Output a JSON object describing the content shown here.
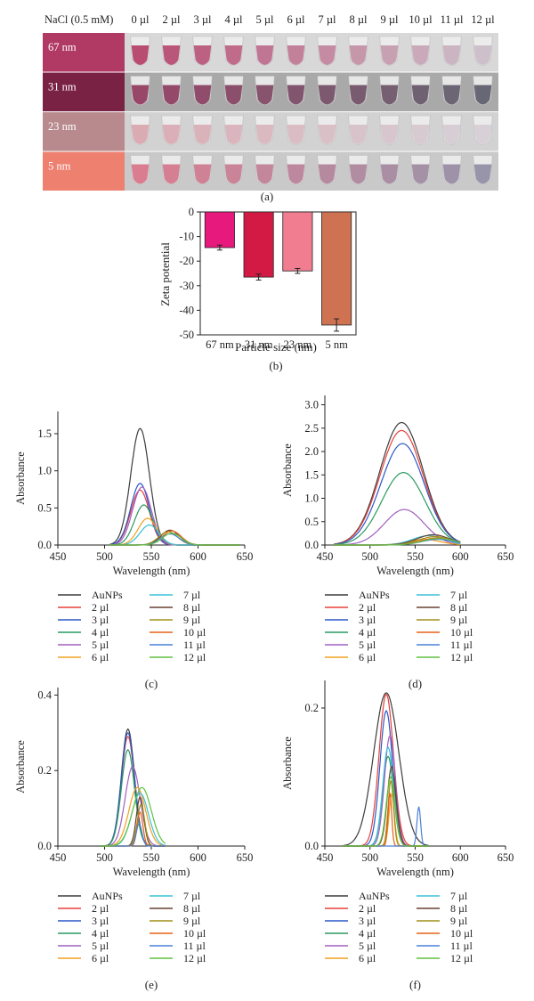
{
  "panel_a": {
    "header_label": "NaCl (0.5 mM)",
    "columns": [
      "0 µl",
      "2 µl",
      "3 µl",
      "4 µl",
      "5 µl",
      "6 µl",
      "7 µl",
      "8 µl",
      "9 µl",
      "10 µl",
      "11 µl",
      "12 µl"
    ],
    "rows": [
      {
        "label": "67 nm",
        "swatch": "#b03a63",
        "bg": "#d8d8d8",
        "tube": "#b0305c",
        "fade": "#c8b8c4"
      },
      {
        "label": "31 nm",
        "swatch": "#7a2244",
        "bg": "#a9a9a9",
        "tube": "#8a2a52",
        "fade": "#505060"
      },
      {
        "label": "23 nm",
        "swatch": "#b88a8e",
        "bg": "#d2d2d2",
        "tube": "#d8a0aa",
        "fade": "#d4ccd4"
      },
      {
        "label": "5 nm",
        "swatch": "#ee8070",
        "bg": "#c9c9c9",
        "tube": "#d86a80",
        "fade": "#8a86a0"
      }
    ],
    "caption": "(a)"
  },
  "panel_b": {
    "caption": "(b)",
    "chart_data": {
      "type": "bar",
      "categories": [
        "67 nm",
        "31 nm",
        "23 nm",
        "5 nm"
      ],
      "values": [
        -14.5,
        -26.5,
        -24,
        -46
      ],
      "errors": [
        1,
        1.2,
        1,
        2.5
      ],
      "colors": [
        "#e8197c",
        "#d21a44",
        "#f07d90",
        "#cf7252"
      ],
      "xlabel": "Particle size (nm)",
      "ylabel": "Zeta potential",
      "ylim": [
        -50,
        0
      ],
      "yticks": [
        0,
        -10,
        -20,
        -30,
        -40,
        -50
      ]
    }
  },
  "spectra": {
    "xlabel": "Wavelength (nm)",
    "ylabel": "Absorbance",
    "xticks": [
      450,
      500,
      550,
      600,
      650
    ],
    "legend": [
      {
        "name": "AuNPs",
        "color": "#3c3c3c"
      },
      {
        "name": "2 µl",
        "color": "#e8403a"
      },
      {
        "name": "3 µl",
        "color": "#2a58c8"
      },
      {
        "name": "4 µl",
        "color": "#2a9a60"
      },
      {
        "name": "5 µl",
        "color": "#a060c0"
      },
      {
        "name": "6 µl",
        "color": "#f0a020"
      },
      {
        "name": "7 µl",
        "color": "#38c0d8"
      },
      {
        "name": "8 µl",
        "color": "#6a4030"
      },
      {
        "name": "9 µl",
        "color": "#a09018"
      },
      {
        "name": "10 µl",
        "color": "#e86018"
      },
      {
        "name": "11 µl",
        "color": "#4a80d8"
      },
      {
        "name": "12 µl",
        "color": "#60c040"
      }
    ],
    "panels": [
      {
        "caption": "(c)",
        "ylim": [
          0,
          1.8
        ],
        "yticks": [
          0.0,
          0.5,
          1.0,
          1.5
        ],
        "ytick_labels": [
          "0.0",
          "0.5",
          "1.0",
          "1.5"
        ],
        "xrange": [
          505,
          645
        ],
        "peaks": [
          {
            "c": 538,
            "w": 10,
            "a": 1.57
          },
          {
            "c": 538,
            "w": 10,
            "a": 0.74
          },
          {
            "c": 538,
            "w": 10,
            "a": 0.83
          },
          {
            "c": 542,
            "w": 10,
            "a": 0.54
          },
          {
            "c": 540,
            "w": 10,
            "a": 0.78
          },
          {
            "c": 546,
            "w": 10,
            "a": 0.36
          },
          {
            "c": 548,
            "w": 10,
            "a": 0.27
          },
          {
            "c": 570,
            "w": 10,
            "a": 0.2
          },
          {
            "c": 568,
            "w": 10,
            "a": 0.18
          },
          {
            "c": 572,
            "w": 10,
            "a": 0.19
          },
          {
            "c": 570,
            "w": 10,
            "a": 0.15
          },
          {
            "c": 572,
            "w": 10,
            "a": 0.16
          }
        ]
      },
      {
        "caption": "(d)",
        "ylim": [
          0,
          3.2
        ],
        "yticks": [
          0.0,
          0.5,
          1.0,
          1.5,
          2.0,
          2.5,
          3.0
        ],
        "ytick_labels": [
          "0.0",
          "0.5",
          "1.0",
          "1.5",
          "2.0",
          "2.5",
          "3.0"
        ],
        "xrange": [
          460,
          600
        ],
        "peaks": [
          {
            "c": 535,
            "w": 24,
            "a": 2.62
          },
          {
            "c": 535,
            "w": 24,
            "a": 2.45
          },
          {
            "c": 536,
            "w": 24,
            "a": 2.17
          },
          {
            "c": 537,
            "w": 24,
            "a": 1.55
          },
          {
            "c": 538,
            "w": 22,
            "a": 0.76
          },
          {
            "c": 560,
            "w": 18,
            "a": 0.12
          },
          {
            "c": 565,
            "w": 18,
            "a": 0.2
          },
          {
            "c": 570,
            "w": 18,
            "a": 0.22
          },
          {
            "c": 572,
            "w": 18,
            "a": 0.18
          },
          {
            "c": 574,
            "w": 18,
            "a": 0.15
          },
          {
            "c": 575,
            "w": 18,
            "a": 0.12
          },
          {
            "c": 576,
            "w": 18,
            "a": 0.14
          }
        ]
      },
      {
        "caption": "(e)",
        "ylim": [
          0,
          0.42
        ],
        "yticks": [
          0.0,
          0.2,
          0.4
        ],
        "ytick_labels": [
          "0.0",
          "0.2",
          "0.4"
        ],
        "xrange": [
          495,
          565
        ],
        "peaks": [
          {
            "c": 525,
            "w": 7,
            "a": 0.31
          },
          {
            "c": 525,
            "w": 7,
            "a": 0.29
          },
          {
            "c": 525,
            "w": 7,
            "a": 0.3
          },
          {
            "c": 525,
            "w": 7,
            "a": 0.255
          },
          {
            "c": 530,
            "w": 8,
            "a": 0.21
          },
          {
            "c": 535,
            "w": 9,
            "a": 0.155
          },
          {
            "c": 538,
            "w": 9,
            "a": 0.14
          },
          {
            "c": 538,
            "w": 4,
            "a": 0.13
          },
          {
            "c": 539,
            "w": 4,
            "a": 0.11
          },
          {
            "c": 538,
            "w": 3,
            "a": 0.09
          },
          {
            "c": 537,
            "w": 3,
            "a": 0.06
          },
          {
            "c": 540,
            "w": 10,
            "a": 0.155
          }
        ]
      },
      {
        "caption": "(f)",
        "ylim": [
          0,
          0.24
        ],
        "yticks": [
          0.0,
          0.2
        ],
        "ytick_labels": [
          "0.0",
          "0.2"
        ],
        "xrange": [
          470,
          565
        ],
        "peaks": [
          {
            "c": 518,
            "w": 14,
            "a": 0.222
          },
          {
            "c": 518,
            "w": 8,
            "a": 0.22
          },
          {
            "c": 518,
            "w": 7,
            "a": 0.196
          },
          {
            "c": 520,
            "w": 6,
            "a": 0.13
          },
          {
            "c": 522,
            "w": 6,
            "a": 0.16
          },
          {
            "c": 524,
            "w": 3,
            "a": 0.075
          },
          {
            "c": 520,
            "w": 6,
            "a": 0.143
          },
          {
            "c": 524,
            "w": 5,
            "a": 0.115
          },
          {
            "c": 523,
            "w": 3,
            "a": 0.095
          },
          {
            "c": 522,
            "w": 2,
            "a": 0.077
          },
          {
            "c": 554,
            "w": 2,
            "a": 0.057
          },
          {
            "c": 523,
            "w": 5,
            "a": 0.1
          }
        ]
      }
    ]
  }
}
